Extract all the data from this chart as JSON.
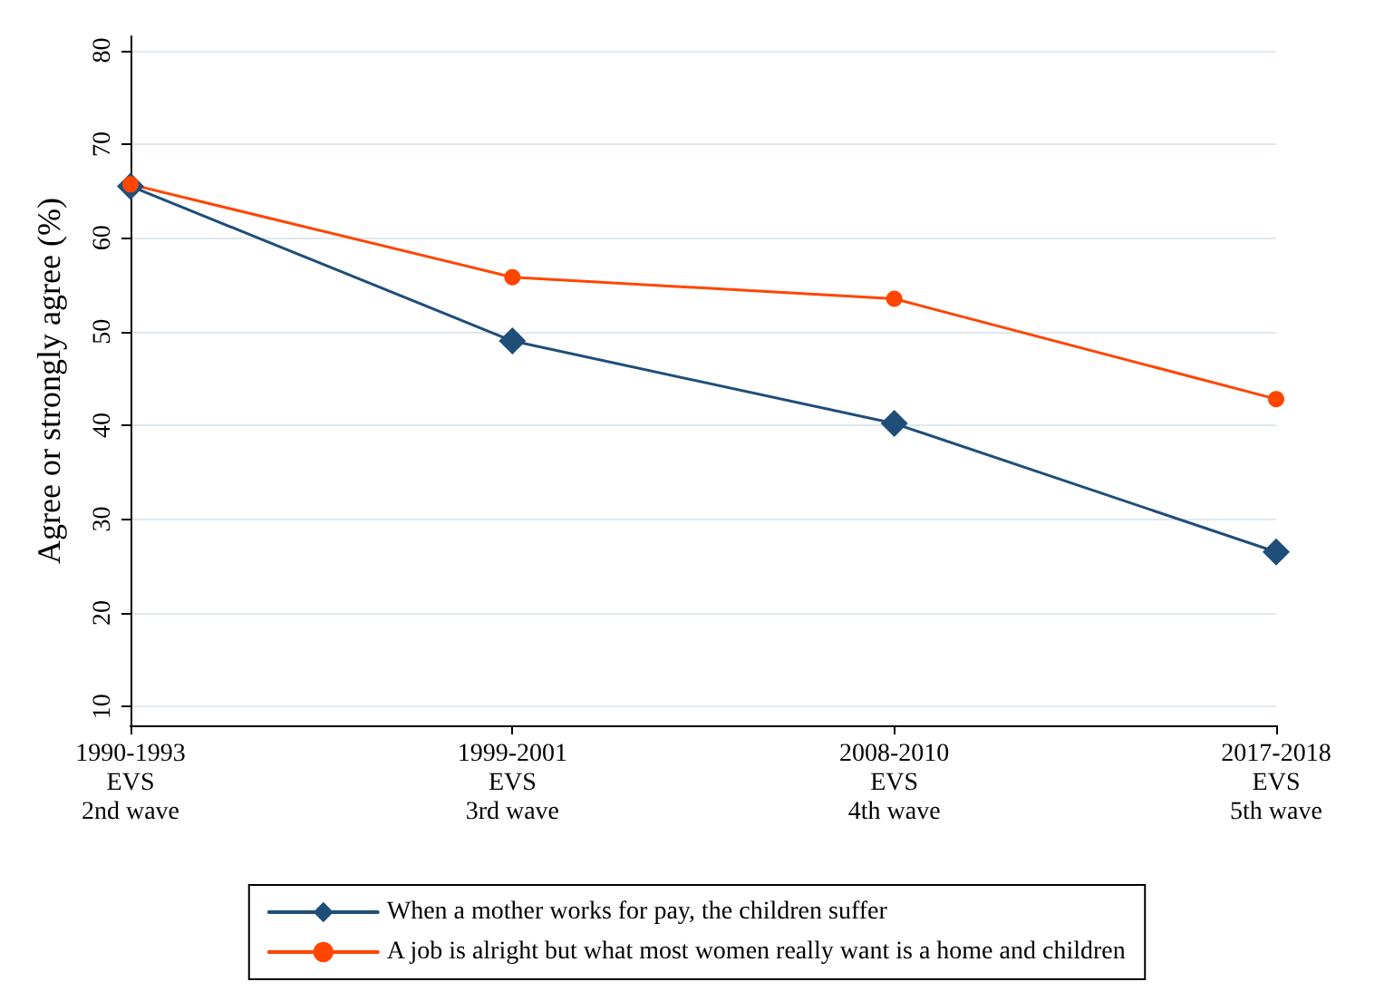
{
  "chart_data": {
    "type": "line",
    "ylabel": "Agree or strongly agree (%)",
    "categories": [
      "1990-1993\nEVS\n2nd wave",
      "1999-2001\nEVS\n3rd wave",
      "2008-2010\nEVS\n4th wave",
      "2017-2018\nEVS\n5th wave"
    ],
    "series": [
      {
        "name": "When a mother works for pay, the children suffer",
        "color": "#1f4e79",
        "marker": "diamond",
        "values": [
          65.5,
          49.0,
          40.2,
          26.5
        ]
      },
      {
        "name": "A job is alright but what most women really want is a home and children",
        "color": "#ff4500",
        "marker": "circle",
        "values": [
          65.7,
          55.8,
          53.5,
          42.8
        ]
      }
    ],
    "ylim": [
      8,
      81.5
    ],
    "yticks": [
      10,
      20,
      30,
      40,
      50,
      60,
      70,
      80
    ],
    "grid": "y",
    "legend": "bottom",
    "line_style": "solid"
  }
}
